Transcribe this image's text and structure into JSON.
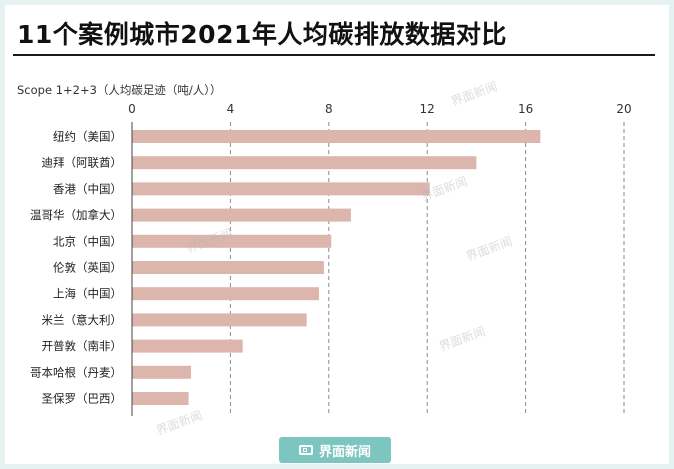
{
  "title": "11个案例城市2021年人均碳排放数据对比",
  "unit_label": "Scope 1+2+3（人均碳足迹（吨/人））",
  "watermark": "界面新闻",
  "brand": "界面新闻",
  "colors": {
    "bar": "#dcb6ad",
    "background": "#e6f2f1",
    "brand": "#7cc5c0"
  },
  "chart_data": {
    "type": "bar",
    "orientation": "horizontal",
    "title": "11个案例城市2021年人均碳排放数据对比",
    "xlabel": "Scope 1+2+3（人均碳足迹（吨/人））",
    "ylabel": "",
    "xlim": [
      0,
      20
    ],
    "xticks": [
      0,
      4,
      8,
      12,
      16,
      20
    ],
    "grid": true,
    "categories": [
      "纽约（美国）",
      "迪拜（阿联酋）",
      "香港（中国）",
      "温哥华（加拿大）",
      "北京（中国）",
      "伦敦（英国）",
      "上海（中国）",
      "米兰（意大利）",
      "开普敦（南非）",
      "哥本哈根（丹麦）",
      "圣保罗（巴西）"
    ],
    "values": [
      16.6,
      14.0,
      12.1,
      8.9,
      8.1,
      7.8,
      7.6,
      7.1,
      4.5,
      2.4,
      2.3
    ]
  }
}
